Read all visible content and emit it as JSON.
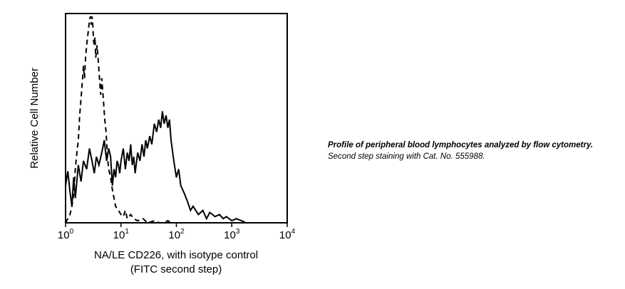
{
  "chart_data": {
    "type": "line",
    "title": "",
    "xlabel_line1": "NA/LE CD226, with isotype control",
    "xlabel_line2": "(FITC second step)",
    "ylabel": "Relative Cell Number",
    "x_scale": "log",
    "xlim": [
      1,
      10000
    ],
    "x_ticks": [
      {
        "base": "10",
        "exp": "0",
        "value": 1
      },
      {
        "base": "10",
        "exp": "1",
        "value": 10
      },
      {
        "base": "10",
        "exp": "2",
        "value": 100
      },
      {
        "base": "10",
        "exp": "3",
        "value": 1000
      },
      {
        "base": "10",
        "exp": "4",
        "value": 10000
      }
    ],
    "ylim": [
      0,
      100
    ],
    "grid": false,
    "series": [
      {
        "style": "solid",
        "color": "#000000",
        "x": [
          1.0,
          1.1,
          1.2,
          1.3,
          1.4,
          1.5,
          1.7,
          1.9,
          2.1,
          2.4,
          2.7,
          3.0,
          3.3,
          3.6,
          4.0,
          4.5,
          5.0,
          5.5,
          6.0,
          6.5,
          7.0,
          7.5,
          8.0,
          8.5,
          9.0,
          9.5,
          10,
          11,
          12,
          13,
          14,
          15,
          16,
          17,
          18,
          20,
          22,
          24,
          26,
          28,
          30,
          33,
          36,
          40,
          44,
          48,
          52,
          56,
          60,
          65,
          70,
          75,
          80,
          90,
          100,
          110,
          120,
          140,
          160,
          180,
          200,
          250,
          300,
          350,
          400,
          500,
          600,
          700,
          800,
          1000,
          1200,
          1500,
          1800,
          2000
        ],
        "y": [
          18,
          25,
          15,
          8,
          22,
          12,
          28,
          20,
          30,
          26,
          36,
          30,
          24,
          32,
          28,
          34,
          40,
          30,
          36,
          32,
          18,
          26,
          22,
          30,
          28,
          24,
          30,
          36,
          26,
          34,
          30,
          38,
          28,
          32,
          24,
          34,
          30,
          38,
          32,
          40,
          36,
          42,
          38,
          48,
          44,
          50,
          46,
          54,
          48,
          52,
          46,
          50,
          40,
          30,
          22,
          26,
          18,
          14,
          10,
          6,
          8,
          4,
          6,
          2,
          5,
          3,
          4,
          2,
          3,
          1,
          2,
          1,
          0,
          0
        ]
      },
      {
        "style": "dashed",
        "color": "#000000",
        "x": [
          1.0,
          1.1,
          1.2,
          1.3,
          1.4,
          1.5,
          1.6,
          1.7,
          1.8,
          1.9,
          2.0,
          2.1,
          2.2,
          2.3,
          2.4,
          2.5,
          2.6,
          2.7,
          2.8,
          2.9,
          3.0,
          3.1,
          3.2,
          3.3,
          3.4,
          3.5,
          3.7,
          3.9,
          4.1,
          4.3,
          4.5,
          4.8,
          5.1,
          5.4,
          5.7,
          6.0,
          6.5,
          7.0,
          7.5,
          8.0,
          9.0,
          10,
          11,
          12,
          13,
          15,
          17,
          20,
          25,
          30,
          40,
          50,
          60,
          70,
          80
        ],
        "y": [
          0,
          2,
          4,
          8,
          14,
          26,
          34,
          40,
          52,
          60,
          68,
          76,
          70,
          80,
          86,
          90,
          94,
          98,
          100,
          96,
          100,
          96,
          88,
          86,
          90,
          80,
          86,
          78,
          70,
          62,
          70,
          60,
          50,
          44,
          32,
          26,
          22,
          16,
          12,
          8,
          6,
          4,
          3,
          6,
          2,
          4,
          2,
          1,
          2,
          0,
          1,
          0,
          0,
          1,
          0
        ]
      }
    ]
  },
  "caption": {
    "bold": "Profile of peripheral blood lymphocytes analyzed by flow cytometry.",
    "rest": " Second step staining with Cat. No. 555988."
  }
}
